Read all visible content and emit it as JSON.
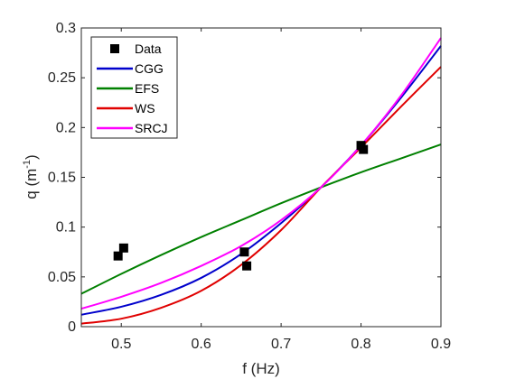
{
  "chart_data": {
    "type": "line",
    "xlabel": "f (Hz)",
    "ylabel_main": "q (m",
    "ylabel_sup": "-1",
    "ylabel_end": ")",
    "xlim": [
      0.45,
      0.9
    ],
    "ylim": [
      0,
      0.3
    ],
    "xticks": [
      "0.5",
      "0.6",
      "0.7",
      "0.8",
      "0.9"
    ],
    "yticks": [
      "0",
      "0.05",
      "0.1",
      "0.15",
      "0.2",
      "0.25",
      "0.3"
    ],
    "legend_position": "top-left",
    "data_points": {
      "name": "Data",
      "color": "#000000",
      "x": [
        0.496,
        0.503,
        0.654,
        0.657,
        0.8,
        0.803
      ],
      "y": [
        0.071,
        0.079,
        0.075,
        0.061,
        0.182,
        0.178
      ]
    },
    "series": [
      {
        "name": "CGG",
        "color": "#0000cc",
        "x": [
          0.45,
          0.5,
          0.55,
          0.6,
          0.65,
          0.7,
          0.75,
          0.8,
          0.85,
          0.9
        ],
        "y": [
          0.012,
          0.02,
          0.032,
          0.049,
          0.073,
          0.104,
          0.14,
          0.182,
          0.23,
          0.282
        ]
      },
      {
        "name": "EFS",
        "color": "#008000",
        "x": [
          0.45,
          0.5,
          0.55,
          0.6,
          0.65,
          0.7,
          0.75,
          0.8,
          0.85,
          0.9
        ],
        "y": [
          0.033,
          0.053,
          0.072,
          0.09,
          0.107,
          0.124,
          0.14,
          0.155,
          0.169,
          0.183
        ]
      },
      {
        "name": "WS",
        "color": "#e00000",
        "x": [
          0.45,
          0.5,
          0.55,
          0.6,
          0.65,
          0.7,
          0.75,
          0.8,
          0.85,
          0.9
        ],
        "y": [
          0.003,
          0.008,
          0.019,
          0.036,
          0.062,
          0.097,
          0.14,
          0.18,
          0.221,
          0.261
        ]
      },
      {
        "name": "SRCJ",
        "color": "#ff00ff",
        "x": [
          0.45,
          0.5,
          0.55,
          0.6,
          0.65,
          0.7,
          0.75,
          0.8,
          0.85,
          0.9
        ],
        "y": [
          0.018,
          0.03,
          0.044,
          0.061,
          0.081,
          0.107,
          0.14,
          0.182,
          0.232,
          0.29
        ]
      }
    ]
  }
}
